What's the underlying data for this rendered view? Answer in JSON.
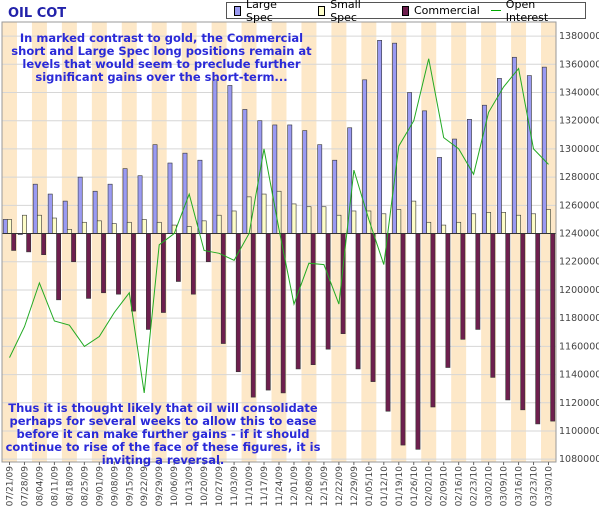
{
  "title": "OIL COT",
  "legend": {
    "large_spec": "Large Spec",
    "small_spec": "Small Spec",
    "commercial": "Commercial",
    "open_interest": "Open Interest"
  },
  "annotations": {
    "top": "In marked contrast to gold, the Commercial short and Large Spec long positions remain at levels that would seem to preclude further significant gains over the short-term...",
    "bottom": "Thus it is thought likely that oil will consolidate perhaps for several weeks to allow this to ease before it can make further gains - if it should continue to rise of the face of these figures, it is inviting a reversal."
  },
  "colors": {
    "large_spec": "#9a9af2",
    "small_spec": "#fdfdc8",
    "commercial": "#6e1f4e",
    "open_interest": "#22aa22",
    "band": "#fde8c8",
    "background": "#ffffff"
  },
  "chart_data": {
    "type": "bar",
    "categories": [
      "07/21/09",
      "07/28/09",
      "08/04/09",
      "08/11/09",
      "08/18/09",
      "08/25/09",
      "09/01/09",
      "09/08/09",
      "09/15/09",
      "09/22/09",
      "09/29/09",
      "10/06/09",
      "10/13/09",
      "10/20/09",
      "10/27/09",
      "11/03/09",
      "11/10/09",
      "11/17/09",
      "11/24/09",
      "12/01/09",
      "12/08/09",
      "12/15/09",
      "12/22/09",
      "12/29/09",
      "01/05/10",
      "01/12/10",
      "01/19/10",
      "01/26/10",
      "02/02/10",
      "02/09/10",
      "02/16/10",
      "02/23/10",
      "03/02/10",
      "03/09/10",
      "03/16/10",
      "03/23/10",
      "03/30/10"
    ],
    "tick_labels": [
      "07/21/09",
      "07/28/09",
      "08/04/09",
      "08/11/09",
      "08/18/09",
      "08/25/09",
      "09/01/09",
      "09/08/09",
      "09/15/09",
      "09/22/09",
      "09/29/09",
      "10/06/09",
      "10/13/09",
      "10/20/09",
      "10/27/09",
      "11/03/09",
      "11/10/09",
      "11/17/09",
      "11/24/09",
      "12/01/09",
      "12/08/09",
      "12/15/09",
      "12/22/09",
      "12/29/09",
      "01/05/10",
      "01/12/10",
      "01/19/10",
      "01/26/10",
      "02/02/10",
      "02/09/10",
      "02/16/10",
      "02/23/10",
      "03/02/10",
      "03/09/10",
      "03/16/10",
      "03/23/10",
      "03/30/10"
    ],
    "series": [
      {
        "name": "Large Spec",
        "values": [
          1250000,
          1240000,
          1275000,
          1268000,
          1263000,
          1280000,
          1270000,
          1275000,
          1286000,
          1281000,
          1303000,
          1290000,
          1297000,
          1292000,
          1349000,
          1345000,
          1328000,
          1320000,
          1317000,
          1317000,
          1313000,
          1303000,
          1292000,
          1315000,
          1349000,
          1377000,
          1375000,
          1340000,
          1327000,
          1294000,
          1307000,
          1321000,
          1331000,
          1350000,
          1365000,
          1352000,
          1358000
        ]
      },
      {
        "name": "Small Spec",
        "values": [
          1250000,
          1253000,
          1253000,
          1251000,
          1243000,
          1248000,
          1249000,
          1247000,
          1248000,
          1250000,
          1248000,
          1246000,
          1245000,
          1249000,
          1253000,
          1256000,
          1266000,
          1268000,
          1270000,
          1261000,
          1259000,
          1259000,
          1253000,
          1256000,
          1256000,
          1254000,
          1257000,
          1263000,
          1248000,
          1246000,
          1248000,
          1254000,
          1255000,
          1255000,
          1253000,
          1254000,
          1257000
        ]
      },
      {
        "name": "Commercial",
        "values": [
          1228000,
          1227000,
          1225000,
          1193000,
          1220000,
          1194000,
          1198000,
          1197000,
          1185000,
          1172000,
          1184000,
          1206000,
          1197000,
          1220000,
          1162000,
          1142000,
          1124000,
          1129000,
          1127000,
          1144000,
          1147000,
          1158000,
          1169000,
          1144000,
          1135000,
          1114000,
          1090000,
          1087000,
          1117000,
          1145000,
          1165000,
          1172000,
          1138000,
          1122000,
          1115000,
          1105000,
          1107000
        ]
      },
      {
        "name": "Open Interest",
        "values": [
          1152000,
          1174000,
          1205000,
          1178000,
          1175000,
          1160000,
          1167000,
          1184000,
          1198000,
          1127000,
          1232000,
          1240000,
          1268000,
          1228000,
          1226000,
          1221000,
          1240000,
          1300000,
          1243000,
          1190000,
          1219000,
          1218000,
          1190000,
          1285000,
          1250000,
          1218000,
          1302000,
          1320000,
          1364000,
          1308000,
          1300000,
          1282000,
          1326000,
          1344000,
          1357000,
          1300000,
          1289000
        ]
      }
    ],
    "y_tick_labels": [
      "1080000",
      "1100000",
      "1120000",
      "1140000",
      "1160000",
      "1180000",
      "1200000",
      "1220000",
      "1240000",
      "1260000",
      "1280000",
      "1300000",
      "1320000",
      "1340000",
      "1360000",
      "1380000"
    ],
    "y_ticks": [
      1080000,
      1100000,
      1120000,
      1140000,
      1160000,
      1180000,
      1200000,
      1220000,
      1240000,
      1260000,
      1280000,
      1300000,
      1320000,
      1340000,
      1360000,
      1380000
    ],
    "baseline": 1240000,
    "ylim": [
      1078000,
      1390000
    ],
    "grid": true,
    "legend_position": "top",
    "y_axis_side": "right"
  }
}
